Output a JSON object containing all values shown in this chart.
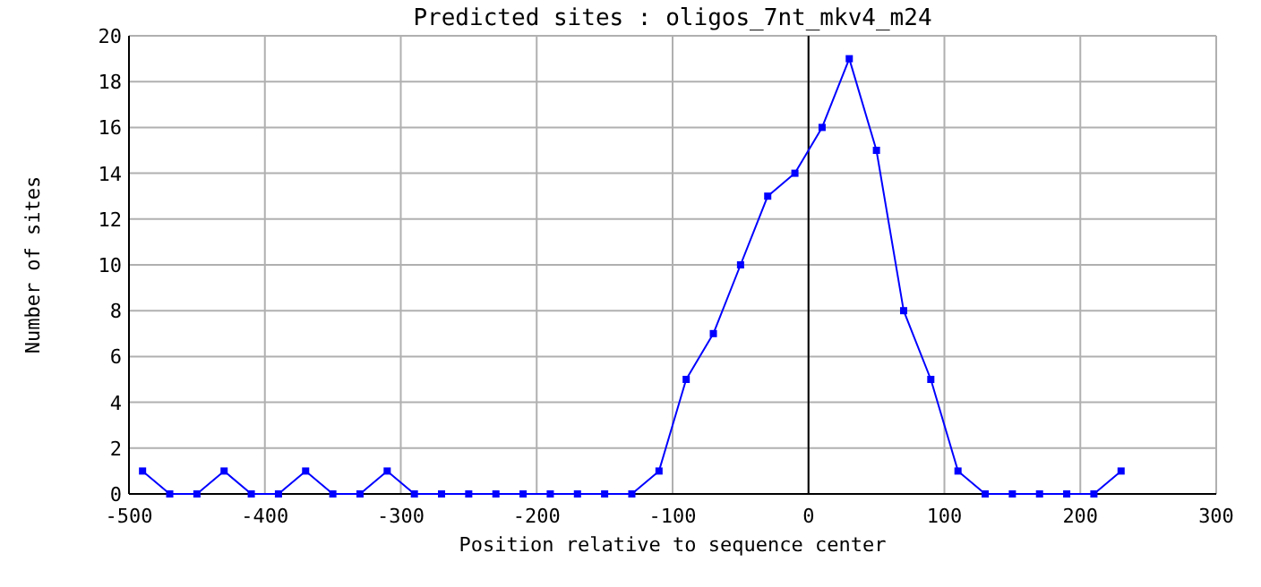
{
  "chart_data": {
    "type": "line",
    "title": "Predicted sites : oligos_7nt_mkv4_m24",
    "xlabel": "Position relative to sequence center",
    "ylabel": "Number of sites",
    "x": [
      -490,
      -470,
      -450,
      -430,
      -410,
      -390,
      -370,
      -350,
      -330,
      -310,
      -290,
      -270,
      -250,
      -230,
      -210,
      -190,
      -170,
      -150,
      -130,
      -110,
      -90,
      -70,
      -50,
      -30,
      -10,
      10,
      30,
      50,
      70,
      90,
      110,
      130,
      150,
      170,
      190,
      210,
      230
    ],
    "series": [
      {
        "color": "#0000ff",
        "values": [
          1,
          0,
          0,
          1,
          0,
          0,
          1,
          0,
          0,
          1,
          0,
          0,
          0,
          0,
          0,
          0,
          0,
          0,
          0,
          1,
          5,
          7,
          10,
          13,
          14,
          16,
          19,
          15,
          8,
          5,
          1,
          0,
          0,
          0,
          0,
          0,
          1
        ]
      }
    ],
    "xlim": [
      -500,
      300
    ],
    "xticks": [
      -500,
      -400,
      -300,
      -200,
      -100,
      0,
      100,
      200,
      300
    ],
    "ylim": [
      0,
      20
    ],
    "yticks": [
      0,
      2,
      4,
      6,
      8,
      10,
      12,
      14,
      16,
      18,
      20
    ],
    "grid": true,
    "marker": "square",
    "line_style": "solid",
    "ref_lines": [
      {
        "axis": "x",
        "value": 0,
        "color": "#000000"
      }
    ]
  }
}
